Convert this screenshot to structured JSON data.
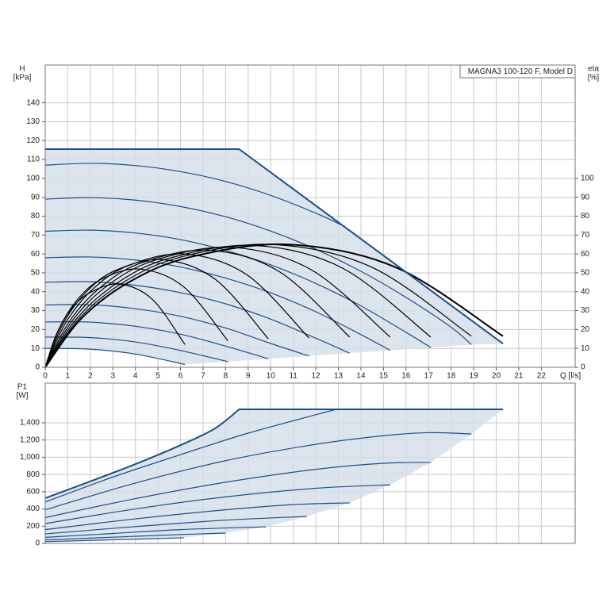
{
  "chart_data": [
    {
      "type": "line",
      "title": "MAGNA3 100-120 F, Model D",
      "x_label": "Q [l/s]",
      "y_label": "H",
      "y_unit": "[kPa]",
      "y2_label": "eta",
      "y2_unit": "[%]",
      "xlim": [
        0,
        23.5
      ],
      "xticks": [
        0,
        1,
        2,
        3,
        4,
        5,
        6,
        7,
        8,
        9,
        10,
        11,
        12,
        13,
        14,
        15,
        16,
        17,
        18,
        19,
        20,
        21,
        22
      ],
      "ylim": [
        0,
        160
      ],
      "yticks": [
        0,
        10,
        20,
        30,
        40,
        50,
        60,
        70,
        80,
        90,
        100,
        110,
        120,
        130,
        140
      ],
      "y2lim": [
        0,
        160
      ],
      "y2ticks": [
        0,
        10,
        20,
        30,
        40,
        50,
        60,
        70,
        80,
        90,
        100
      ],
      "grid": true,
      "area": {
        "color": "#d3dde8",
        "x": [
          0,
          8.6,
          20.3,
          18.9,
          17.1,
          15.3,
          13.5,
          11.7,
          9.9,
          8.1,
          6.2,
          4,
          2,
          0
        ],
        "values": [
          115.5,
          115.5,
          12.5,
          12,
          10.5,
          9,
          7.5,
          6,
          4.5,
          3,
          1.5,
          7,
          9.6,
          10
        ]
      },
      "envelope": {
        "color": "#1b4f8a",
        "x": [
          0,
          8.6,
          20.3
        ],
        "values": [
          115.5,
          115.5,
          12.5
        ]
      },
      "series": [
        {
          "color": "#1b4f8a",
          "x": [
            0,
            2,
            4,
            6,
            8,
            10,
            12,
            13.2
          ],
          "values": [
            107,
            108,
            106.8,
            103.6,
            98.4,
            91,
            81.6,
            75
          ]
        },
        {
          "color": "#1b4f8a",
          "x": [
            0,
            2,
            4,
            6,
            8,
            10,
            12,
            14,
            16,
            18,
            18.9
          ],
          "values": [
            89,
            89.8,
            88.5,
            85.1,
            79.7,
            72.1,
            62.5,
            50.8,
            37,
            21.2,
            12
          ]
        },
        {
          "color": "#1b4f8a",
          "x": [
            0,
            2,
            4,
            6,
            8,
            10,
            12,
            14,
            16,
            17.1
          ],
          "values": [
            72,
            72.6,
            71.1,
            67.6,
            61.9,
            54.2,
            44.4,
            32.5,
            18.5,
            10.5
          ]
        },
        {
          "color": "#1b4f8a",
          "x": [
            0,
            2,
            4,
            6,
            8,
            10,
            12,
            14,
            15.3
          ],
          "values": [
            58,
            58.4,
            56.8,
            53.1,
            47.2,
            39.4,
            29.4,
            17.3,
            9
          ]
        },
        {
          "color": "#1b4f8a",
          "x": [
            0,
            2,
            4,
            6,
            8,
            10,
            12,
            13.5
          ],
          "values": [
            45,
            45.3,
            43.4,
            39.5,
            33.6,
            25.5,
            15.4,
            7.5
          ]
        },
        {
          "color": "#1b4f8a",
          "x": [
            0,
            2,
            4,
            6,
            8,
            10,
            11.7
          ],
          "values": [
            33,
            33.1,
            31,
            27,
            20.8,
            12.6,
            6
          ]
        },
        {
          "color": "#1b4f8a",
          "x": [
            0,
            2,
            4,
            6,
            8,
            9.9
          ],
          "values": [
            24,
            23.9,
            21.7,
            17.5,
            11.2,
            4.5
          ]
        },
        {
          "color": "#1b4f8a",
          "x": [
            0,
            2,
            4,
            6,
            8.1
          ],
          "values": [
            16,
            15.7,
            13.4,
            8.9,
            3
          ]
        },
        {
          "color": "#1b4f8a",
          "x": [
            0,
            2,
            4,
            6.2
          ],
          "values": [
            10,
            9.6,
            7,
            1.5
          ]
        },
        {
          "color": "#000000",
          "axis": "y2",
          "x": [
            0,
            0.5,
            1.15,
            2,
            3.3,
            4.75,
            6.2
          ],
          "values": [
            0,
            17.6,
            30.8,
            39.6,
            44,
            36,
            12
          ]
        },
        {
          "color": "#000000",
          "axis": "y2",
          "x": [
            0,
            0.63,
            1.47,
            2.52,
            4.2,
            6.15,
            8.1
          ],
          "values": [
            0,
            20.8,
            36.4,
            46.8,
            52,
            42.5,
            14
          ]
        },
        {
          "color": "#000000",
          "axis": "y2",
          "x": [
            0,
            0.78,
            1.82,
            3.12,
            5.2,
            7.55,
            9.9
          ],
          "values": [
            0,
            22.8,
            39.9,
            51.3,
            57,
            46.5,
            15
          ]
        },
        {
          "color": "#000000",
          "axis": "y2",
          "x": [
            0,
            0.93,
            2.17,
            3.72,
            6.2,
            8.95,
            11.7
          ],
          "values": [
            0,
            24,
            42,
            54,
            60,
            48.9,
            15.5
          ]
        },
        {
          "color": "#000000",
          "axis": "y2",
          "x": [
            0,
            1.1,
            2.56,
            4.38,
            7.3,
            10.4,
            13.5
          ],
          "values": [
            0,
            24.8,
            43.4,
            55.8,
            62,
            50.5,
            16
          ]
        },
        {
          "color": "#000000",
          "axis": "y2",
          "x": [
            0,
            1.25,
            2.9,
            5,
            8.3,
            11.8,
            15.3
          ],
          "values": [
            0,
            25.4,
            44.5,
            57.2,
            63.5,
            51.6,
            16
          ]
        },
        {
          "color": "#000000",
          "axis": "y2",
          "x": [
            0,
            1.4,
            3.26,
            5.58,
            9.3,
            13.2,
            17.1
          ],
          "values": [
            0,
            25.8,
            45.2,
            58,
            64.5,
            52.4,
            16
          ]
        },
        {
          "color": "#000000",
          "axis": "y2",
          "x": [
            0,
            1.52,
            3.54,
            6.06,
            10.1,
            14.5,
            18.9
          ],
          "values": [
            0,
            26,
            45.5,
            58.5,
            65,
            52.9,
            16.5
          ]
        },
        {
          "color": "#000000",
          "axis": "y2",
          "width": 2,
          "x": [
            0,
            1.62,
            3.78,
            6.48,
            10.8,
            15.55,
            20.3
          ],
          "values": [
            0,
            26,
            45.5,
            58.5,
            65,
            52.9,
            16.5
          ]
        }
      ]
    },
    {
      "type": "line",
      "y_label": "P1",
      "y_unit": "[W]",
      "xlim": [
        0,
        23.5
      ],
      "ylim": [
        0,
        1860
      ],
      "yticks": [
        0,
        200,
        400,
        600,
        800,
        {
          "value": 1000,
          "label": "1,000"
        },
        {
          "value": 1200,
          "label": "1,200"
        },
        {
          "value": 1400,
          "label": "1,400"
        }
      ],
      "grid": true,
      "area": {
        "color": "#d3dde8",
        "x": [
          0,
          2,
          4,
          6,
          7.5,
          8.6,
          20.3,
          18.9,
          17.1,
          15.3,
          13.5,
          11.6,
          9.8,
          8,
          6.15,
          3,
          0
        ],
        "values": [
          525,
          720,
          920,
          1140,
          1330,
          1556,
          1556,
          1270,
          940,
          680,
          470,
          313,
          193,
          120,
          65,
          42,
          20
        ]
      },
      "envelope": {
        "color": "#1b4f8a",
        "x": [
          0,
          2,
          4,
          6,
          7.5,
          8.6,
          20.3
        ],
        "values": [
          525,
          720,
          920,
          1140,
          1330,
          1556,
          1556
        ]
      },
      "series": [
        {
          "color": "#1b4f8a",
          "x": [
            0,
            3,
            6,
            9,
            12.9
          ],
          "values": [
            480,
            770,
            1030,
            1280,
            1556
          ]
        },
        {
          "color": "#1b4f8a",
          "x": [
            0,
            4,
            8,
            12,
            15,
            17,
            18.9
          ],
          "values": [
            390,
            700,
            960,
            1150,
            1250,
            1285,
            1270
          ]
        },
        {
          "color": "#1b4f8a",
          "x": [
            0,
            4,
            8,
            12,
            15,
            17.1
          ],
          "values": [
            300,
            520,
            710,
            860,
            930,
            940
          ]
        },
        {
          "color": "#1b4f8a",
          "x": [
            0,
            4,
            8,
            12,
            15.3
          ],
          "values": [
            230,
            400,
            540,
            640,
            680
          ]
        },
        {
          "color": "#1b4f8a",
          "x": [
            0,
            4,
            8,
            11,
            13.5
          ],
          "values": [
            160,
            285,
            390,
            450,
            470
          ]
        },
        {
          "color": "#1b4f8a",
          "x": [
            0,
            4,
            8,
            11.6
          ],
          "values": [
            110,
            195,
            270,
            313
          ]
        },
        {
          "color": "#1b4f8a",
          "x": [
            0,
            3,
            6,
            9.8
          ],
          "values": [
            70,
            115,
            160,
            193
          ]
        },
        {
          "color": "#1b4f8a",
          "x": [
            0,
            3,
            6,
            8
          ],
          "values": [
            40,
            72,
            103,
            120
          ]
        },
        {
          "color": "#1b4f8a",
          "x": [
            0,
            3,
            6.15
          ],
          "values": [
            20,
            42,
            65
          ]
        }
      ]
    }
  ]
}
